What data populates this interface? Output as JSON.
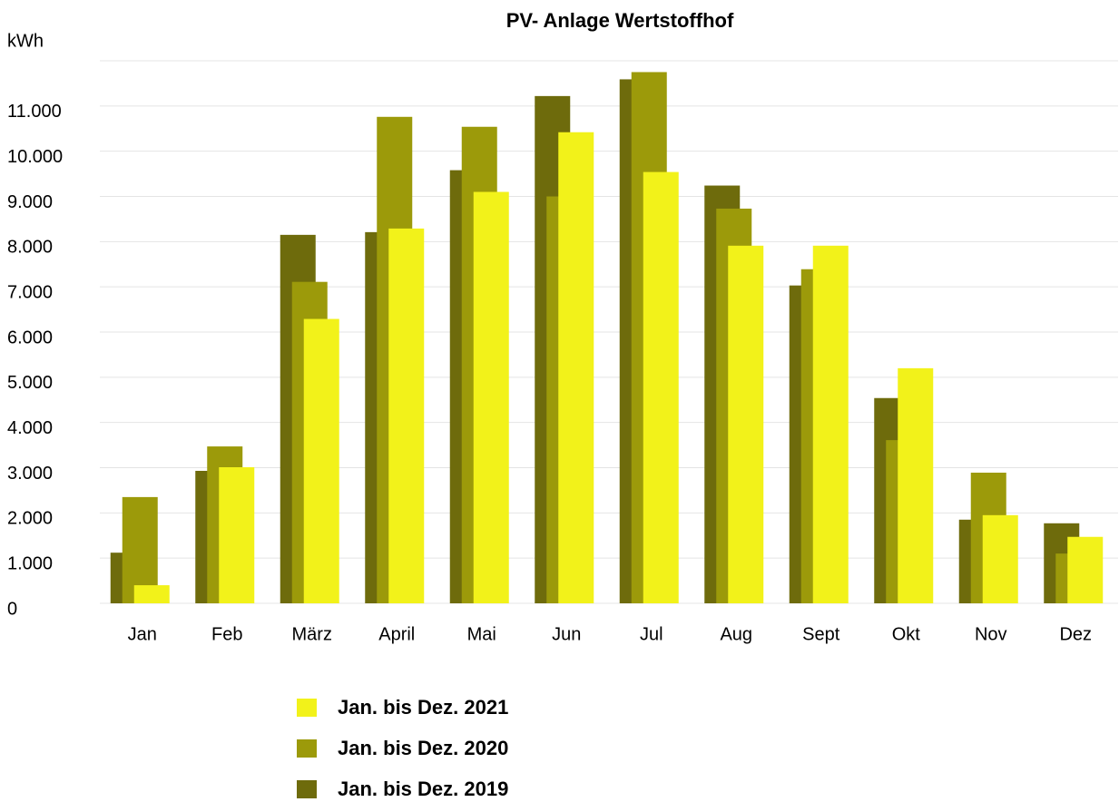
{
  "chart_data": {
    "type": "bar",
    "title": "PV- Anlage Wertstoffhof",
    "y_label": "kWh",
    "categories": [
      "Jan",
      "Feb",
      "März",
      "April",
      "Mai",
      "Jun",
      "Jul",
      "Aug",
      "Sept",
      "Okt",
      "Nov",
      "Dez"
    ],
    "series": [
      {
        "name": "Jan. bis Dez. 2021",
        "color": "#f2f21a",
        "values": [
          400,
          3010,
          6290,
          8290,
          9100,
          10420,
          9540,
          7910,
          7910,
          5200,
          1950,
          1470
        ]
      },
      {
        "name": "Jan. bis Dez. 2020",
        "color": "#9c9a0a",
        "values": [
          2350,
          3470,
          7110,
          10760,
          10540,
          9000,
          11750,
          8730,
          7390,
          3610,
          2890,
          1100
        ]
      },
      {
        "name": "Jan. bis Dez. 2019",
        "color": "#6e6b0c",
        "values": [
          1120,
          2930,
          8150,
          8210,
          9580,
          11220,
          11590,
          9240,
          7030,
          4540,
          1850,
          1770
        ]
      }
    ],
    "ylim": [
      0,
      12000
    ],
    "yticks": [
      0,
      {
        "value": 1000,
        "label": "1.000"
      },
      {
        "value": 2000,
        "label": "2.000"
      },
      {
        "value": 3000,
        "label": "3.000"
      },
      {
        "value": 4000,
        "label": "4.000"
      },
      {
        "value": 5000,
        "label": "5.000"
      },
      {
        "value": 6000,
        "label": "6.000"
      },
      {
        "value": 7000,
        "label": "7.000"
      },
      {
        "value": 8000,
        "label": "8.000"
      },
      {
        "value": 9000,
        "label": "9.000"
      },
      {
        "value": 10000,
        "label": "10.000"
      },
      {
        "value": 11000,
        "label": "11.000"
      }
    ],
    "grid": true
  }
}
